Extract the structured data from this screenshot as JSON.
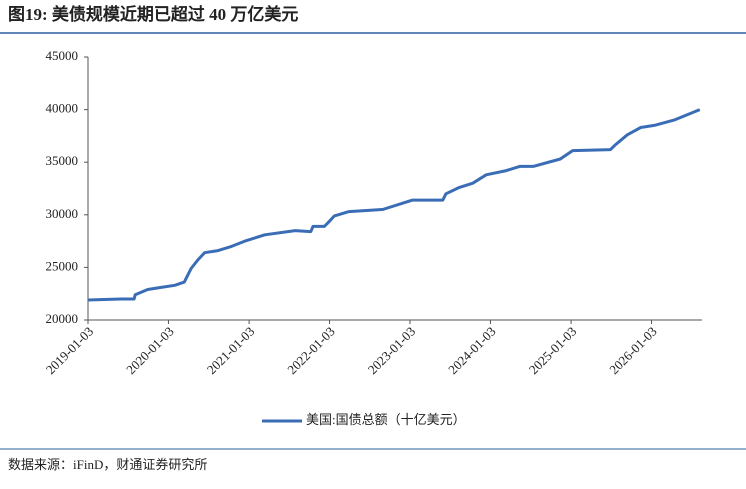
{
  "chart_data": {
    "type": "line",
    "title": "图19: 美债规模近期已超过 40 万亿美元",
    "source": "数据来源：iFinD，财通证券研究所",
    "x": [
      "2019-01-03",
      "2019-06-01",
      "2019-07-31",
      "2019-08-05",
      "2019-10-01",
      "2019-12-01",
      "2020-02-01",
      "2020-03-15",
      "2020-04-15",
      "2020-05-15",
      "2020-06-15",
      "2020-08-15",
      "2020-10-15",
      "2020-12-15",
      "2021-03-15",
      "2021-07-31",
      "2021-10-10",
      "2021-10-20",
      "2021-12-10",
      "2021-12-25",
      "2022-01-25",
      "2022-04-01",
      "2022-09-01",
      "2022-12-15",
      "2023-01-15",
      "2023-06-01",
      "2023-06-15",
      "2023-08-15",
      "2023-10-15",
      "2023-12-15",
      "2024-03-15",
      "2024-05-15",
      "2024-07-15",
      "2024-11-15",
      "2025-01-10",
      "2025-07-01",
      "2025-07-20",
      "2025-09-15",
      "2025-11-15",
      "2026-01-15",
      "2026-04-15",
      "2026-08-10"
    ],
    "series": [
      {
        "name": "美国:国债总额（十亿美元）",
        "color": "#3a6db5",
        "values": [
          21900,
          22000,
          22000,
          22400,
          22900,
          23100,
          23300,
          23600,
          24900,
          25700,
          26400,
          26600,
          27000,
          27500,
          28100,
          28500,
          28400,
          28900,
          28900,
          29200,
          29900,
          30300,
          30500,
          31200,
          31400,
          31400,
          32000,
          32600,
          33000,
          33800,
          34200,
          34600,
          34600,
          35300,
          36100,
          36200,
          36600,
          37600,
          38300,
          38500,
          39000,
          40000
        ]
      }
    ],
    "xlim": [
      "2019-01-03",
      "2026-08-20"
    ],
    "xticks": [
      "2019-01-03",
      "2020-01-03",
      "2021-01-03",
      "2022-01-03",
      "2023-01-03",
      "2024-01-03",
      "2025-01-03",
      "2026-01-03"
    ],
    "ylim": [
      20000,
      45000
    ],
    "yticks": [
      20000,
      25000,
      30000,
      35000,
      40000,
      45000
    ],
    "grid": false,
    "legend": "bottom"
  }
}
